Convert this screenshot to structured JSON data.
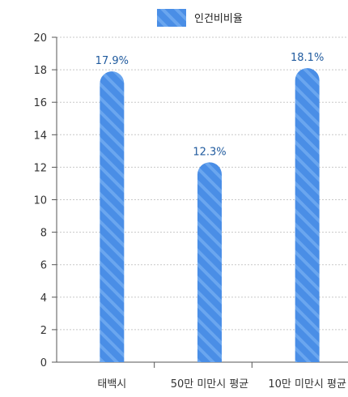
{
  "chart_data": {
    "type": "bar",
    "categories": [
      "태백시",
      "50만 미만시 평균",
      "10만 미만시 평균"
    ],
    "series": [
      {
        "name": "인건비비율",
        "values": [
          17.9,
          12.3,
          18.1
        ],
        "labels": [
          "17.9%",
          "12.3%",
          "18.1%"
        ]
      }
    ],
    "ylim": [
      0,
      20
    ],
    "yticks": [
      0,
      2,
      4,
      6,
      8,
      10,
      12,
      14,
      16,
      18,
      20
    ],
    "grid": true,
    "legend": "top-center",
    "colors": {
      "bar": "#4a8ee6",
      "stripe": "#6aa6ef",
      "label": "#1f5a9e",
      "axis": "#555555",
      "grid": "#c8c8c8"
    }
  }
}
